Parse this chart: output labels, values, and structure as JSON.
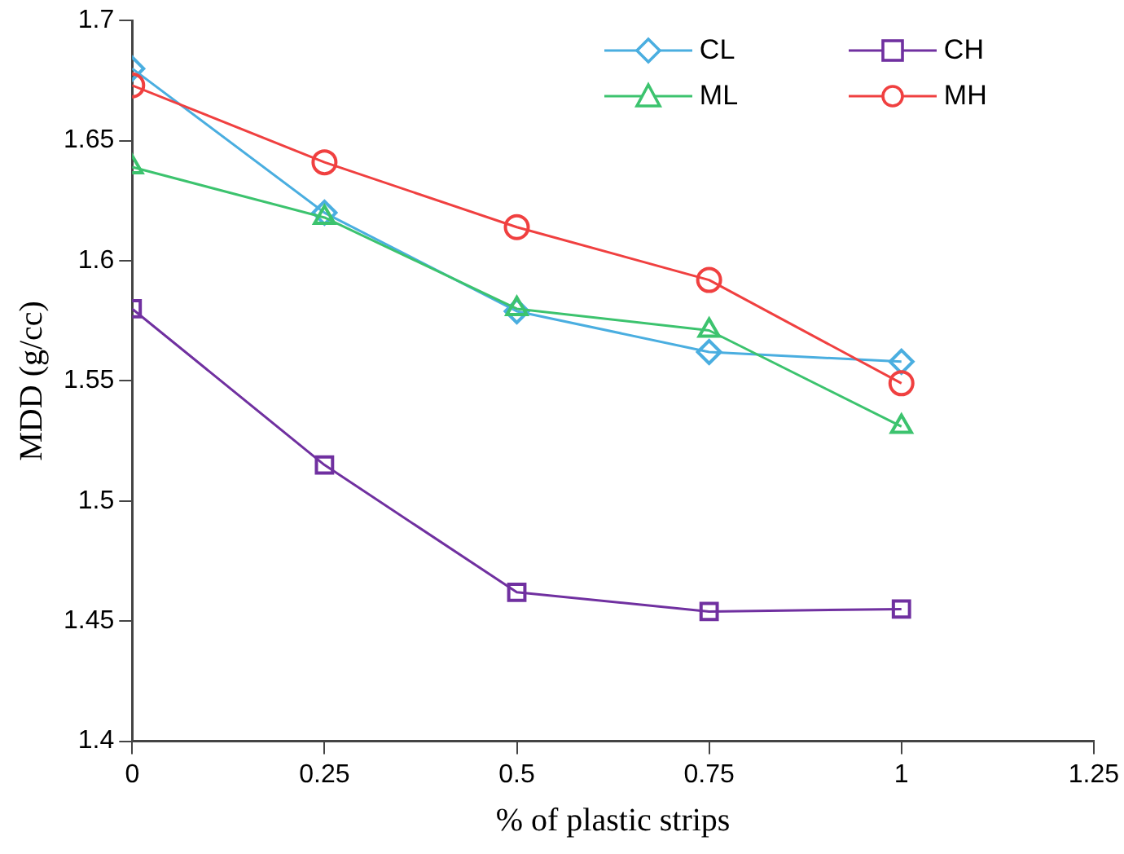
{
  "chart_data": {
    "type": "line",
    "xlabel": "% of plastic strips",
    "ylabel": "MDD (g/cc)",
    "x": [
      0,
      0.25,
      0.5,
      0.75,
      1
    ],
    "series": [
      {
        "name": "CL",
        "color": "#4aaee0",
        "marker": "diamond",
        "values": [
          1.68,
          1.62,
          1.579,
          1.562,
          1.558
        ]
      },
      {
        "name": "CH",
        "color": "#7030a0",
        "marker": "square",
        "values": [
          1.58,
          1.515,
          1.462,
          1.454,
          1.455
        ]
      },
      {
        "name": "ML",
        "color": "#3cc36e",
        "marker": "triangle",
        "values": [
          1.639,
          1.618,
          1.58,
          1.571,
          1.531
        ]
      },
      {
        "name": "MH",
        "color": "#f04040",
        "marker": "circle",
        "values": [
          1.673,
          1.641,
          1.614,
          1.592,
          1.549
        ]
      }
    ],
    "xlim": [
      0,
      1.25
    ],
    "xticks": [
      0,
      0.25,
      0.5,
      0.75,
      1,
      1.25
    ],
    "ylim": [
      1.4,
      1.7
    ],
    "yticks": [
      1.4,
      1.45,
      1.5,
      1.55,
      1.6,
      1.65,
      1.7
    ],
    "grid": false,
    "legend": "top right",
    "line_style": "solid"
  }
}
